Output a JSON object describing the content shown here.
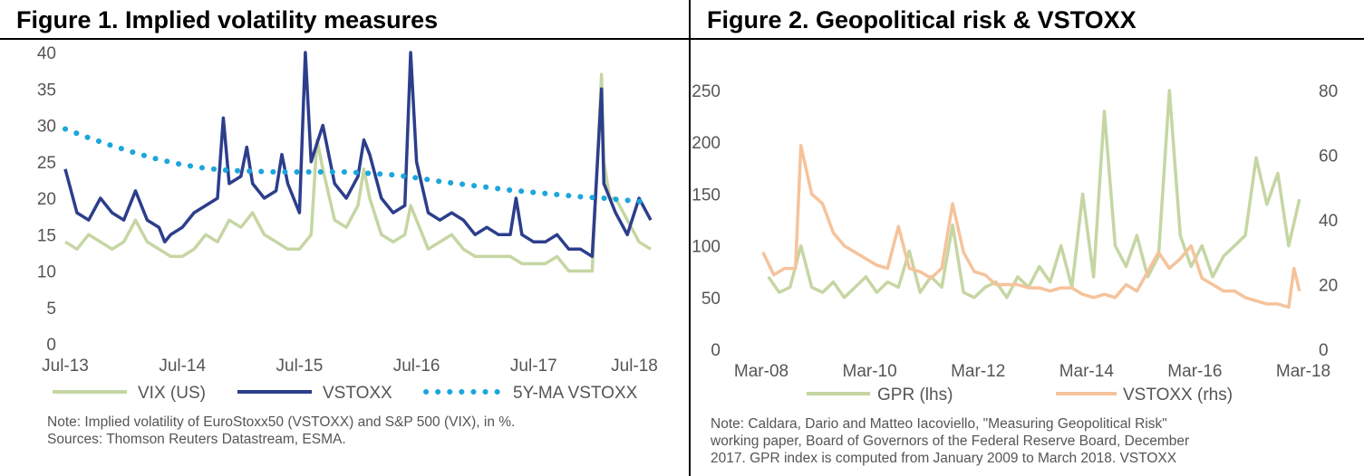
{
  "figures": [
    {
      "title": "Figure 1. Implied volatility measures",
      "note_lines": [
        "Note: Implied volatility of EuroStoxx50 (VSTOXX) and S&P 500 (VIX), in %.",
        "Sources: Thomson Reuters Datastream, ESMA."
      ]
    },
    {
      "title": "Figure 2. Geopolitical risk & VSTOXX",
      "note_lines": [
        "Note: Caldara, Dario and Matteo Iacoviello, \"Measuring Geopolitical Risk\"",
        "working paper, Board of Governors of the Federal Reserve Board, December",
        "2017. GPR index is computed from January 2009 to March 2018. VSTOXX"
      ]
    }
  ],
  "chart_data": [
    {
      "type": "line",
      "x_tick_labels": [
        "Jul-13",
        "Jul-14",
        "Jul-15",
        "Jul-16",
        "Jul-17",
        "Jul-18"
      ],
      "y_tick_labels": [
        "0",
        "5",
        "10",
        "15",
        "20",
        "25",
        "30",
        "35",
        "40"
      ],
      "ylim": [
        0,
        40
      ],
      "xlim": [
        2013.5,
        2018.5
      ],
      "grid": false,
      "legend_position": "bottom",
      "colors": {
        "vix": "#c5d6a3",
        "vstoxx": "#2c3e8c",
        "ma": "#1ba6dc"
      },
      "series": [
        {
          "name": "VIX (US)",
          "x": [
            2013.5,
            2013.6,
            2013.7,
            2013.8,
            2013.9,
            2014.0,
            2014.1,
            2014.2,
            2014.3,
            2014.4,
            2014.5,
            2014.6,
            2014.7,
            2014.8,
            2014.9,
            2015.0,
            2015.1,
            2015.2,
            2015.3,
            2015.4,
            2015.5,
            2015.6,
            2015.65,
            2015.7,
            2015.8,
            2015.9,
            2016.0,
            2016.05,
            2016.1,
            2016.2,
            2016.3,
            2016.4,
            2016.45,
            2016.5,
            2016.6,
            2016.7,
            2016.8,
            2016.9,
            2017.0,
            2017.1,
            2017.2,
            2017.3,
            2017.4,
            2017.5,
            2017.6,
            2017.7,
            2017.8,
            2017.9,
            2018.0,
            2018.08,
            2018.1,
            2018.15,
            2018.2,
            2018.3,
            2018.4,
            2018.5
          ],
          "values": [
            14,
            13,
            15,
            14,
            13,
            14,
            17,
            14,
            13,
            12,
            12,
            13,
            15,
            14,
            17,
            16,
            18,
            15,
            14,
            13,
            13,
            15,
            28,
            24,
            17,
            16,
            19,
            24,
            20,
            15,
            14,
            15,
            19,
            17,
            13,
            14,
            15,
            13,
            12,
            12,
            12,
            12,
            11,
            11,
            11,
            12,
            10,
            10,
            10,
            37,
            25,
            20,
            20,
            17,
            14,
            13
          ]
        },
        {
          "name": "VSTOXX",
          "x": [
            2013.5,
            2013.6,
            2013.7,
            2013.8,
            2013.9,
            2014.0,
            2014.1,
            2014.2,
            2014.3,
            2014.35,
            2014.4,
            2014.5,
            2014.6,
            2014.7,
            2014.8,
            2014.85,
            2014.9,
            2015.0,
            2015.05,
            2015.1,
            2015.2,
            2015.3,
            2015.35,
            2015.4,
            2015.5,
            2015.55,
            2015.6,
            2015.7,
            2015.8,
            2015.9,
            2016.0,
            2016.05,
            2016.1,
            2016.2,
            2016.3,
            2016.4,
            2016.45,
            2016.5,
            2016.6,
            2016.7,
            2016.8,
            2016.9,
            2017.0,
            2017.1,
            2017.2,
            2017.3,
            2017.35,
            2017.4,
            2017.5,
            2017.6,
            2017.7,
            2017.8,
            2017.9,
            2018.0,
            2018.08,
            2018.1,
            2018.2,
            2018.3,
            2018.4,
            2018.5
          ],
          "values": [
            24,
            18,
            17,
            20,
            18,
            17,
            21,
            17,
            16,
            14,
            15,
            16,
            18,
            19,
            20,
            31,
            22,
            23,
            27,
            22,
            20,
            21,
            26,
            22,
            18,
            40,
            25,
            30,
            22,
            20,
            23,
            28,
            26,
            20,
            18,
            19,
            40,
            25,
            18,
            17,
            18,
            17,
            15,
            16,
            15,
            15,
            20,
            15,
            14,
            14,
            15,
            13,
            13,
            12,
            35,
            22,
            18,
            15,
            20,
            17
          ]
        },
        {
          "name": "5Y-MA VSTOXX",
          "x": [
            2013.5,
            2013.7,
            2013.9,
            2014.1,
            2014.3,
            2014.5,
            2014.7,
            2014.9,
            2015.1,
            2015.3,
            2015.5,
            2015.7,
            2015.9,
            2016.1,
            2016.3,
            2016.5,
            2016.7,
            2016.9,
            2017.1,
            2017.3,
            2017.5,
            2017.7,
            2017.9,
            2018.1,
            2018.3,
            2018.5
          ],
          "values": [
            29.5,
            28.3,
            27.2,
            26.2,
            25.3,
            24.6,
            24.1,
            23.8,
            23.7,
            23.6,
            23.6,
            23.6,
            23.6,
            23.4,
            23.2,
            22.8,
            22.3,
            21.9,
            21.5,
            21.1,
            20.8,
            20.5,
            20.2,
            20.0,
            19.7,
            19.4
          ]
        }
      ]
    },
    {
      "type": "line",
      "x_tick_labels": [
        "Mar-08",
        "Mar-10",
        "Mar-12",
        "Mar-14",
        "Mar-16",
        "Mar-18"
      ],
      "y_left_tick_labels": [
        "0",
        "50",
        "100",
        "150",
        "200",
        "250"
      ],
      "y_right_tick_labels": [
        "0",
        "20",
        "40",
        "60",
        "80"
      ],
      "ylim_left": [
        0,
        250
      ],
      "ylim_right": [
        0,
        80
      ],
      "xlim": [
        2008.17,
        2018.17
      ],
      "grid": false,
      "legend_position": "bottom",
      "colors": {
        "gpr": "#c5d6a3",
        "vstoxx": "#f5c39b"
      },
      "series": [
        {
          "name": "GPR (lhs)",
          "axis": "left",
          "x": [
            2008.3,
            2008.5,
            2008.7,
            2008.9,
            2009.1,
            2009.3,
            2009.5,
            2009.7,
            2009.9,
            2010.1,
            2010.3,
            2010.5,
            2010.7,
            2010.9,
            2011.1,
            2011.3,
            2011.5,
            2011.7,
            2011.9,
            2012.1,
            2012.3,
            2012.5,
            2012.7,
            2012.9,
            2013.1,
            2013.3,
            2013.5,
            2013.7,
            2013.9,
            2014.1,
            2014.3,
            2014.5,
            2014.7,
            2014.9,
            2015.1,
            2015.3,
            2015.5,
            2015.7,
            2015.9,
            2016.1,
            2016.3,
            2016.5,
            2016.7,
            2016.9,
            2017.1,
            2017.3,
            2017.5,
            2017.7,
            2017.9,
            2018.1
          ],
          "values": [
            70,
            55,
            60,
            100,
            60,
            55,
            65,
            50,
            60,
            70,
            55,
            65,
            60,
            95,
            55,
            70,
            60,
            120,
            55,
            50,
            60,
            65,
            50,
            70,
            60,
            80,
            65,
            100,
            60,
            150,
            70,
            230,
            100,
            80,
            110,
            70,
            90,
            250,
            110,
            80,
            100,
            70,
            90,
            100,
            110,
            185,
            140,
            170,
            100,
            145
          ]
        },
        {
          "name": "VSTOXX (rhs)",
          "axis": "right",
          "x": [
            2008.2,
            2008.4,
            2008.6,
            2008.8,
            2008.9,
            2009.1,
            2009.3,
            2009.5,
            2009.7,
            2009.9,
            2010.1,
            2010.3,
            2010.5,
            2010.7,
            2010.9,
            2011.1,
            2011.3,
            2011.5,
            2011.7,
            2011.9,
            2012.1,
            2012.3,
            2012.5,
            2012.7,
            2012.9,
            2013.1,
            2013.3,
            2013.5,
            2013.7,
            2013.9,
            2014.1,
            2014.3,
            2014.5,
            2014.7,
            2014.9,
            2015.1,
            2015.3,
            2015.5,
            2015.7,
            2015.9,
            2016.1,
            2016.3,
            2016.5,
            2016.7,
            2016.9,
            2017.1,
            2017.3,
            2017.5,
            2017.7,
            2017.9,
            2018.0,
            2018.1
          ],
          "values": [
            30,
            23,
            25,
            25,
            63,
            48,
            45,
            36,
            32,
            30,
            28,
            26,
            25,
            38,
            25,
            24,
            22,
            25,
            45,
            30,
            24,
            23,
            20,
            20,
            20,
            19,
            19,
            18,
            19,
            19,
            17,
            16,
            17,
            16,
            20,
            18,
            24,
            30,
            25,
            28,
            32,
            22,
            20,
            18,
            18,
            16,
            15,
            14,
            14,
            13,
            25,
            18
          ]
        }
      ]
    }
  ]
}
